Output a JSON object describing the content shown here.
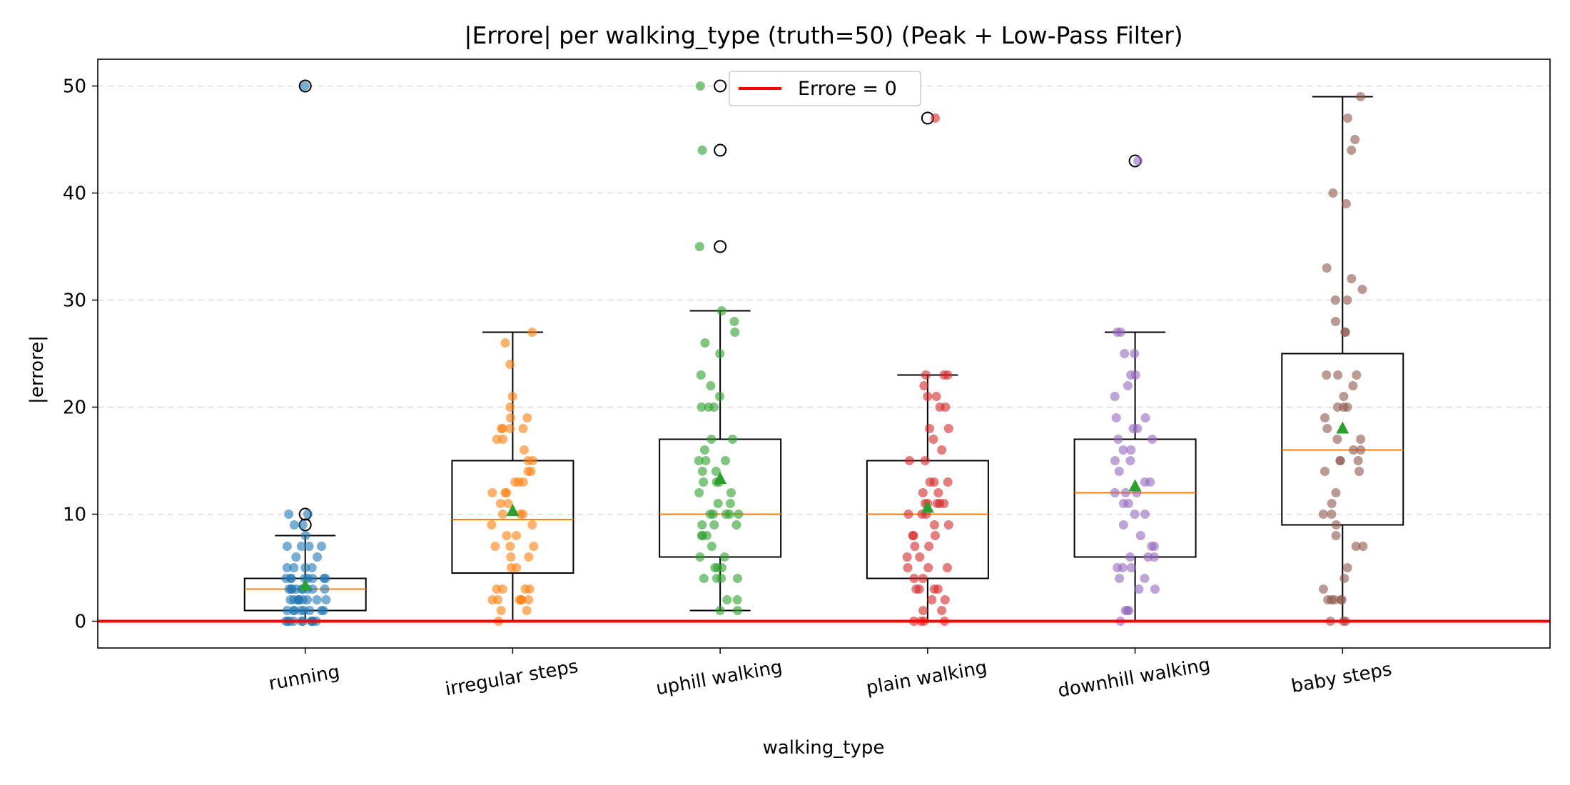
{
  "chart_data": {
    "type": "box",
    "title": "|Errore| per walking_type (truth=50) (Peak + Low-Pass Filter)",
    "xlabel": "walking_type",
    "ylabel": "|errore|",
    "ylim": [
      -2.5,
      52.5
    ],
    "yticks": [
      0,
      10,
      20,
      30,
      40,
      50
    ],
    "grid": "horizontal dashed",
    "legend": {
      "position": "top-center",
      "entries": [
        {
          "label": "Errore = 0",
          "color": "#ff0000"
        }
      ]
    },
    "reference_line": {
      "y": 0,
      "color": "#ff0000"
    },
    "mean_marker_color": "#2ca02c",
    "median_color": "#ff7f0e",
    "categories": [
      "running",
      "irregular steps",
      "uphill walking",
      "plain walking",
      "downhill walking",
      "baby steps"
    ],
    "series": [
      {
        "category": "running",
        "color": "#1f77b4",
        "whislo": 0,
        "q1": 1,
        "median": 3,
        "q3": 4,
        "whishi": 8,
        "mean": 3.3,
        "fliers": [
          50,
          10,
          9
        ],
        "points": [
          50,
          10,
          10,
          9,
          9,
          8,
          7,
          7,
          7,
          7,
          6,
          6,
          5,
          5,
          5,
          5,
          4,
          4,
          4,
          4,
          4,
          4,
          4,
          4,
          3,
          3,
          3,
          3,
          3,
          3,
          3,
          3,
          3,
          2,
          2,
          2,
          2,
          2,
          2,
          2,
          2,
          2,
          1,
          1,
          1,
          1,
          1,
          1,
          1,
          1,
          0,
          0,
          0,
          0,
          0,
          0,
          0,
          0,
          0,
          0
        ]
      },
      {
        "category": "irregular steps",
        "color": "#ff7f0e",
        "whislo": 0,
        "q1": 4.5,
        "median": 9.5,
        "q3": 15,
        "whishi": 27,
        "mean": 10.3,
        "fliers": [],
        "points": [
          27,
          26,
          24,
          21,
          20,
          19,
          19,
          18,
          18,
          18,
          18,
          17,
          17,
          16,
          15,
          15,
          14,
          14,
          13,
          13,
          13,
          12,
          12,
          12,
          11,
          11,
          10,
          10,
          10,
          9,
          9,
          8,
          8,
          7,
          7,
          7,
          6,
          6,
          5,
          5,
          3,
          3,
          3,
          3,
          2,
          2,
          2,
          2,
          2,
          2,
          1,
          1,
          0
        ]
      },
      {
        "category": "uphill walking",
        "color": "#2ca02c",
        "whislo": 1,
        "q1": 6,
        "median": 10,
        "q3": 17,
        "whishi": 29,
        "mean": 13.3,
        "fliers": [
          50,
          44,
          35
        ],
        "points": [
          50,
          44,
          35,
          29,
          28,
          27,
          26,
          25,
          23,
          22,
          21,
          20,
          20,
          20,
          17,
          17,
          16,
          15,
          15,
          15,
          14,
          14,
          13,
          13,
          13,
          12,
          12,
          11,
          11,
          10,
          10,
          10,
          10,
          10,
          9,
          9,
          9,
          8,
          8,
          8,
          7,
          6,
          6,
          5,
          5,
          5,
          4,
          4,
          4,
          4,
          2,
          2,
          1,
          1
        ]
      },
      {
        "category": "plain walking",
        "color": "#d62728",
        "whislo": 0,
        "q1": 4,
        "median": 10,
        "q3": 15,
        "whishi": 23,
        "mean": 10.6,
        "fliers": [
          47
        ],
        "points": [
          47,
          23,
          23,
          23,
          22,
          21,
          21,
          20,
          20,
          18,
          18,
          17,
          16,
          15,
          15,
          13,
          13,
          13,
          12,
          12,
          11,
          11,
          11,
          11,
          11,
          10,
          10,
          10,
          9,
          9,
          8,
          8,
          8,
          7,
          7,
          6,
          6,
          5,
          5,
          5,
          4,
          4,
          3,
          3,
          3,
          3,
          2,
          2,
          1,
          1,
          0,
          0,
          0,
          0
        ]
      },
      {
        "category": "downhill walking",
        "color": "#9467bd",
        "whislo": 0,
        "q1": 6,
        "median": 12,
        "q3": 17,
        "whishi": 27,
        "mean": 12.6,
        "fliers": [
          43
        ],
        "points": [
          43,
          27,
          27,
          25,
          25,
          23,
          23,
          22,
          21,
          19,
          19,
          18,
          18,
          17,
          17,
          16,
          16,
          15,
          15,
          14,
          13,
          13,
          12,
          12,
          12,
          11,
          11,
          10,
          10,
          9,
          8,
          7,
          7,
          6,
          6,
          6,
          5,
          5,
          5,
          4,
          4,
          3,
          3,
          1,
          1,
          1,
          0
        ]
      },
      {
        "category": "baby steps",
        "color": "#8c564b",
        "whislo": 0,
        "q1": 9,
        "median": 16,
        "q3": 25,
        "whishi": 49,
        "mean": 18,
        "fliers": [],
        "points": [
          49,
          47,
          45,
          44,
          40,
          39,
          33,
          32,
          31,
          30,
          30,
          28,
          27,
          27,
          23,
          23,
          23,
          22,
          21,
          20,
          20,
          20,
          19,
          18,
          17,
          17,
          16,
          16,
          15,
          15,
          15,
          14,
          14,
          12,
          11,
          10,
          10,
          9,
          8,
          7,
          7,
          5,
          4,
          3,
          2,
          2,
          2,
          2,
          2,
          0,
          0,
          0
        ]
      }
    ]
  }
}
